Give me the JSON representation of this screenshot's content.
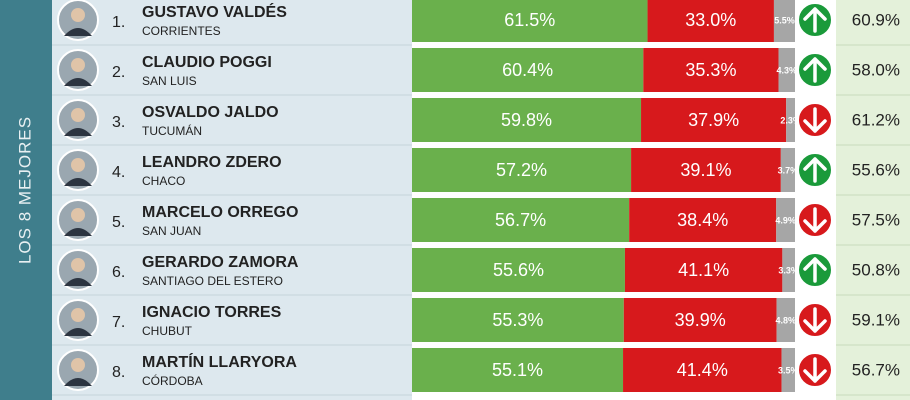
{
  "chart_data": {
    "type": "bar",
    "orientation": "horizontal",
    "stacked": true,
    "side_label": "LOS 8 MEJORES",
    "ranks": [
      "1.",
      "2.",
      "3.",
      "4.",
      "5.",
      "6.",
      "7.",
      "8."
    ],
    "categories": [
      "GUSTAVO VALDÉS",
      "CLAUDIO POGGI",
      "OSVALDO JALDO",
      "LEANDRO ZDERO",
      "MARCELO ORREGO",
      "GERARDO ZAMORA",
      "IGNACIO TORRES",
      "MARTÍN LLARYORA"
    ],
    "provinces": [
      "CORRIENTES",
      "SAN LUIS",
      "TUCUMÁN",
      "CHACO",
      "SAN JUAN",
      "SANTIAGO DEL ESTERO",
      "CHUBUT",
      "CÓRDOBA"
    ],
    "xlim": [
      0,
      100
    ],
    "series": [
      {
        "color": "#6ab04c",
        "values": [
          61.5,
          60.4,
          59.8,
          57.2,
          56.7,
          55.6,
          55.3,
          55.1
        ],
        "value_labels": [
          "61.5%",
          "60.4%",
          "59.8%",
          "57.2%",
          "56.7%",
          "55.6%",
          "55.3%",
          "55.1%"
        ]
      },
      {
        "color": "#d7191c",
        "values": [
          33.0,
          35.3,
          37.9,
          39.1,
          38.4,
          41.1,
          39.9,
          41.4
        ],
        "value_labels": [
          "33.0%",
          "35.3%",
          "37.9%",
          "39.1%",
          "38.4%",
          "41.1%",
          "39.9%",
          "41.4%"
        ]
      },
      {
        "color": "#a6a6a6",
        "values": [
          5.5,
          4.3,
          2.3,
          3.7,
          4.9,
          3.3,
          4.8,
          3.5
        ],
        "value_labels": [
          "5.5%",
          "4.3%",
          "2.3%",
          "3.7%",
          "4.9%",
          "3.3%",
          "4.8%",
          "3.5%"
        ]
      }
    ],
    "trend": [
      "up",
      "up",
      "down",
      "up",
      "down",
      "up",
      "down",
      "down"
    ],
    "trend_colors": {
      "up": "#1a9a3a",
      "down": "#d7191c"
    },
    "previous": {
      "values": [
        60.9,
        58.0,
        61.2,
        55.6,
        57.5,
        50.8,
        59.1,
        56.7
      ],
      "value_labels": [
        "60.9%",
        "58.0%",
        "61.2%",
        "55.6%",
        "57.5%",
        "50.8%",
        "59.1%",
        "56.7%"
      ]
    }
  }
}
